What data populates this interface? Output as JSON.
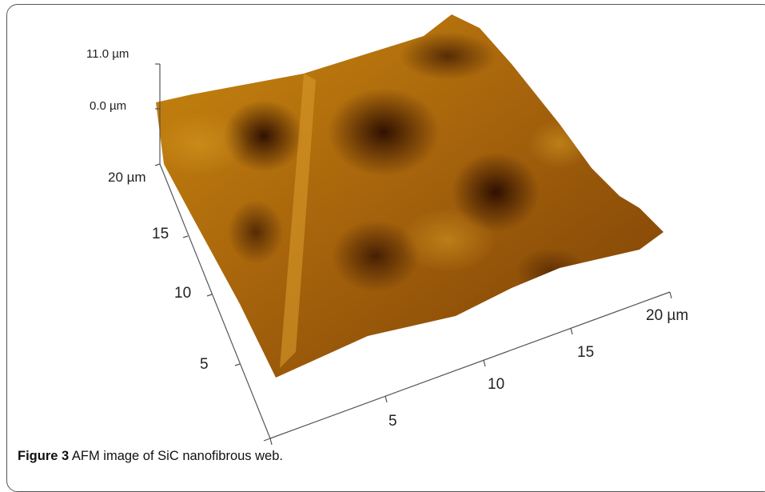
{
  "figure": {
    "z_axis": [
      "11.0 µm",
      "0.0 µm"
    ],
    "y_axis": [
      "20 µm",
      "15",
      "10",
      "5"
    ],
    "x_axis": [
      "5",
      "10",
      "15",
      "20 µm"
    ]
  },
  "caption": {
    "label": "Figure 3",
    "text": "AFM image of SiC nanofibrous web."
  }
}
